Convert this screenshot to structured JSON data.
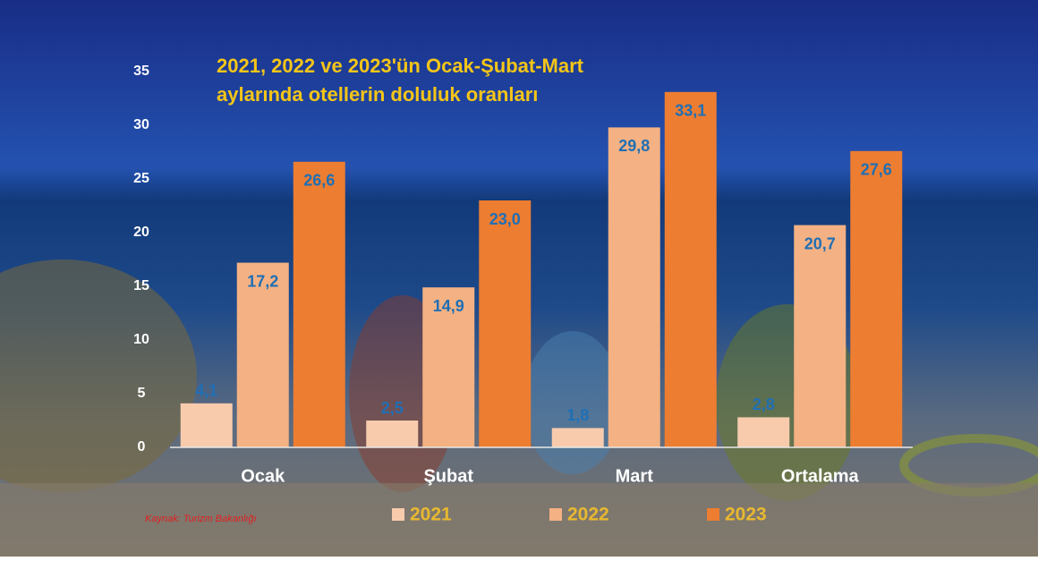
{
  "chart_data": {
    "type": "bar",
    "title": [
      "2021, 2022 ve 2023'ün Ocak-Şubat-Mart",
      "aylarında otellerin doluluk oranları"
    ],
    "categories": [
      "Ocak",
      "Şubat",
      "Mart",
      "Ortalama"
    ],
    "series": [
      {
        "name": "2021",
        "color": "#f8cbad",
        "values": [
          4.1,
          2.5,
          1.8,
          2.8
        ],
        "value_labels": [
          "4,1",
          "2,5",
          "1,8",
          "2,8"
        ]
      },
      {
        "name": "2022",
        "color": "#f4b183",
        "values": [
          17.2,
          14.9,
          29.8,
          20.7
        ],
        "value_labels": [
          "17,2",
          "14,9",
          "29,8",
          "20,7"
        ]
      },
      {
        "name": "2023",
        "color": "#ed7d31",
        "values": [
          26.6,
          23.0,
          33.1,
          27.6
        ],
        "value_labels": [
          "26,6",
          "23,0",
          "33,1",
          "27,6"
        ]
      }
    ],
    "ylim": [
      0,
      35
    ],
    "yticks": [
      0,
      5,
      10,
      15,
      20,
      25,
      30,
      35
    ],
    "grid": false,
    "source": "Kaynak: Turizm Bakanlığı"
  }
}
